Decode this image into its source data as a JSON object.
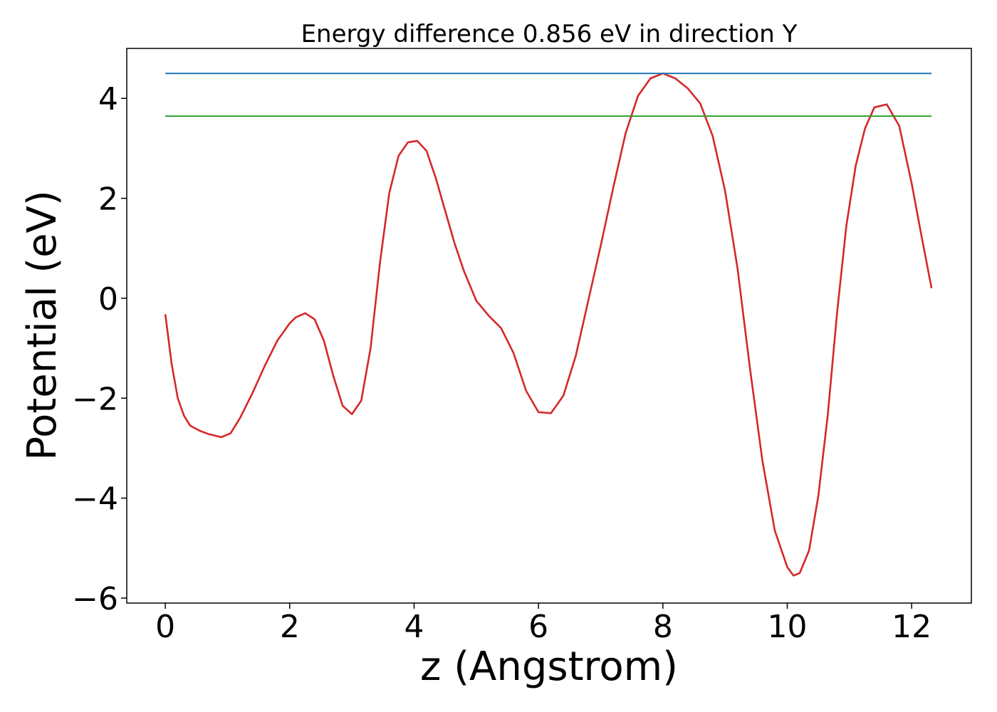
{
  "chart_data": {
    "type": "line",
    "title": "Energy difference 0.856 eV in direction Y",
    "xlabel": "z (Angstrom)",
    "ylabel": "Potential (eV)",
    "xlim": [
      -0.62,
      12.96
    ],
    "ylim": [
      -6.1,
      5.0
    ],
    "xticks": [
      0,
      2,
      4,
      6,
      8,
      10,
      12
    ],
    "xtick_labels": [
      "0",
      "2",
      "4",
      "6",
      "8",
      "10",
      "12"
    ],
    "yticks": [
      -6,
      -4,
      -2,
      0,
      2,
      4
    ],
    "ytick_labels": [
      "−6",
      "−4",
      "−2",
      "0",
      "2",
      "4"
    ],
    "grid": false,
    "series": [
      {
        "color": "#d62728",
        "x": [
          0.0,
          0.1,
          0.2,
          0.3,
          0.4,
          0.55,
          0.7,
          0.9,
          1.05,
          1.2,
          1.4,
          1.6,
          1.8,
          2.0,
          2.1,
          2.25,
          2.4,
          2.55,
          2.7,
          2.85,
          3.0,
          3.15,
          3.3,
          3.45,
          3.6,
          3.75,
          3.9,
          4.05,
          4.2,
          4.35,
          4.5,
          4.65,
          4.8,
          5.0,
          5.2,
          5.4,
          5.6,
          5.8,
          6.0,
          6.2,
          6.4,
          6.6,
          6.8,
          7.0,
          7.2,
          7.4,
          7.6,
          7.8,
          8.0,
          8.2,
          8.4,
          8.6,
          8.8,
          9.0,
          9.2,
          9.4,
          9.6,
          9.8,
          10.0,
          10.1,
          10.2,
          10.35,
          10.5,
          10.65,
          10.8,
          10.95,
          11.1,
          11.25,
          11.4,
          11.6,
          11.8,
          12.0,
          12.15,
          12.32
        ],
        "y": [
          -0.32,
          -1.3,
          -2.0,
          -2.35,
          -2.55,
          -2.65,
          -2.72,
          -2.78,
          -2.7,
          -2.4,
          -1.9,
          -1.35,
          -0.85,
          -0.5,
          -0.38,
          -0.3,
          -0.42,
          -0.85,
          -1.55,
          -2.15,
          -2.32,
          -2.05,
          -1.0,
          0.7,
          2.1,
          2.85,
          3.12,
          3.15,
          2.95,
          2.4,
          1.75,
          1.1,
          0.55,
          -0.05,
          -0.35,
          -0.6,
          -1.1,
          -1.85,
          -2.28,
          -2.3,
          -1.95,
          -1.15,
          -0.05,
          1.05,
          2.2,
          3.3,
          4.05,
          4.4,
          4.5,
          4.4,
          4.2,
          3.9,
          3.25,
          2.15,
          0.6,
          -1.4,
          -3.25,
          -4.65,
          -5.38,
          -5.55,
          -5.5,
          -5.05,
          -3.95,
          -2.35,
          -0.3,
          1.45,
          2.65,
          3.4,
          3.82,
          3.88,
          3.45,
          2.3,
          1.3,
          0.2
        ]
      },
      {
        "color": "#1f77b4",
        "x": [
          0.0,
          12.32
        ],
        "y": [
          4.5,
          4.5
        ]
      },
      {
        "color": "#2ca02c",
        "x": [
          0.0,
          12.32
        ],
        "y": [
          3.644,
          3.644
        ]
      }
    ]
  }
}
